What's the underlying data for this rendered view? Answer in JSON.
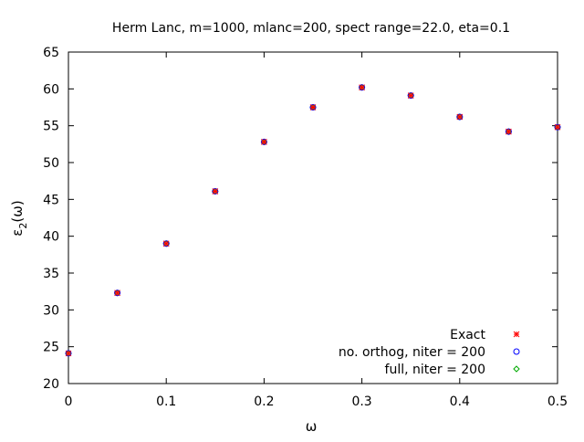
{
  "chart_data": {
    "type": "scatter",
    "title": "Herm Lanc, m=1000, mlanc=200, spect range=22.0, eta=0.1",
    "xlabel": "ω",
    "ylabel_main": "ε",
    "ylabel_sub": "2",
    "ylabel_tail": "(ω)",
    "xlim": [
      0,
      0.5
    ],
    "ylim": [
      20,
      65
    ],
    "xticks": [
      0,
      0.1,
      0.2,
      0.3,
      0.4,
      0.5
    ],
    "xtick_labels": [
      "0",
      "0.1",
      "0.2",
      "0.3",
      "0.4",
      "0.5"
    ],
    "yticks": [
      20,
      25,
      30,
      35,
      40,
      45,
      50,
      55,
      60,
      65
    ],
    "ytick_labels": [
      "20",
      "25",
      "30",
      "35",
      "40",
      "45",
      "50",
      "55",
      "60",
      "65"
    ],
    "grid": false,
    "legend_position": "bottom-right",
    "x": [
      0,
      0.05,
      0.1,
      0.15,
      0.2,
      0.25,
      0.3,
      0.35,
      0.4,
      0.45,
      0.5
    ],
    "series": [
      {
        "name": "Exact",
        "marker": "star",
        "color": "#ff0000",
        "values": [
          24.1,
          32.3,
          39.0,
          46.1,
          52.8,
          57.5,
          60.2,
          59.1,
          56.2,
          54.2,
          54.8
        ]
      },
      {
        "name": "no. orthog, niter = 200",
        "marker": "circle",
        "color": "#0000ff",
        "values": [
          24.1,
          32.3,
          39.0,
          46.1,
          52.8,
          57.5,
          60.2,
          59.1,
          56.2,
          54.2,
          54.8
        ]
      },
      {
        "name": "full, niter = 200",
        "marker": "diamond",
        "color": "#00aa00",
        "values": [
          24.1,
          32.3,
          39.0,
          46.1,
          52.8,
          57.5,
          60.2,
          59.1,
          56.2,
          54.2,
          54.8
        ]
      }
    ]
  }
}
